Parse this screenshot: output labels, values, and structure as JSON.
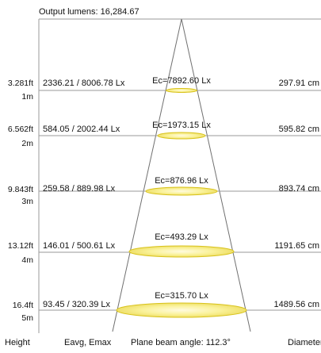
{
  "header": {
    "output_lumens": "Output lumens: 16,284.67"
  },
  "levels": [
    {
      "height_ft": "3.281ft",
      "height_m": "1m",
      "eavg_emax": "2336.21 / 8006.78 Lx",
      "ec": "Ec=7892.60 Lx",
      "diameter": "297.91 cm"
    },
    {
      "height_ft": "6.562ft",
      "height_m": "2m",
      "eavg_emax": "584.05 / 2002.44 Lx",
      "ec": "Ec=1973.15 Lx",
      "diameter": "595.82 cm"
    },
    {
      "height_ft": "9.843ft",
      "height_m": "3m",
      "eavg_emax": "259.58 / 889.98 Lx",
      "ec": "Ec=876.96 Lx",
      "diameter": "893.74 cm"
    },
    {
      "height_ft": "13.12ft",
      "height_m": "4m",
      "eavg_emax": "146.01 / 500.61 Lx",
      "ec": "Ec=493.29 Lx",
      "diameter": "1191.65 cm"
    },
    {
      "height_ft": "16.4ft",
      "height_m": "5m",
      "eavg_emax": "93.45 / 320.39 Lx",
      "ec": "Ec=315.70 Lx",
      "diameter": "1489.56 cm"
    }
  ],
  "footer": {
    "height": "Height",
    "eavg_emax": "Eavg, Emax",
    "beam_angle": "Plane beam angle: 112.3°",
    "diameter": "Diameter"
  },
  "colors": {
    "line": "#9a9a9a",
    "cone": "#707070",
    "ellipse_fill": "#f7ee8a",
    "ellipse_center": "#fffbe0",
    "ellipse_stroke": "#d8c21a"
  }
}
